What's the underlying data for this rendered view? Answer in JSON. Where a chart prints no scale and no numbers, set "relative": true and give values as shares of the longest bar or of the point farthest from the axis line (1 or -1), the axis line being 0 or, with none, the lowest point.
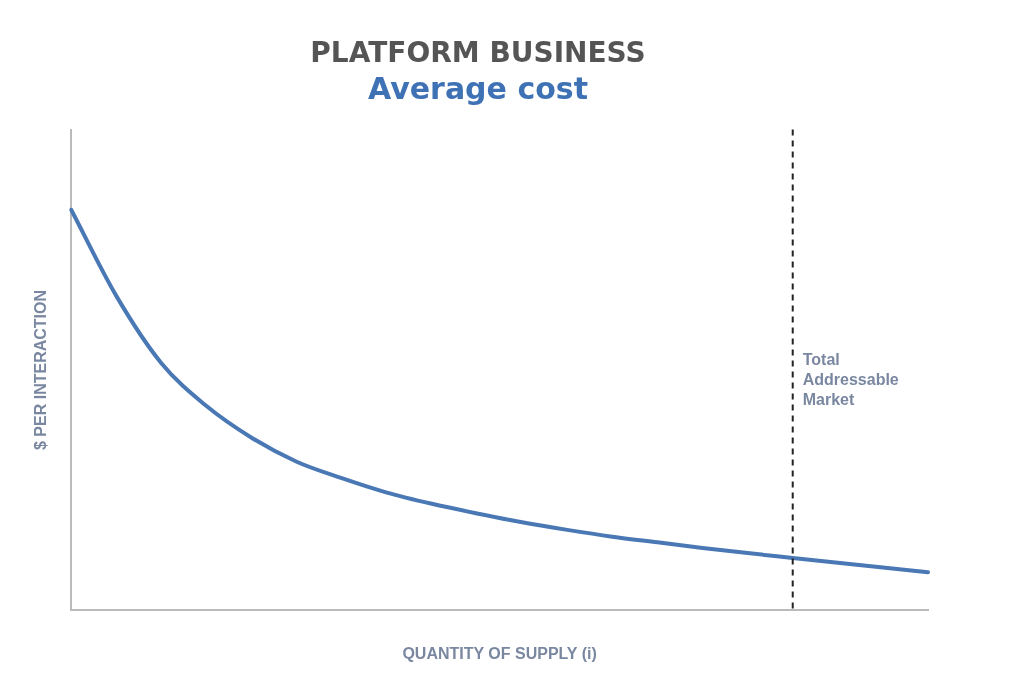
{
  "chart_data": {
    "type": "line",
    "title": "PLATFORM BUSINESS",
    "subtitle": "Average cost",
    "xlabel": "QUANTITY OF SUPPLY (i)",
    "ylabel": "$ PER INTERACTION",
    "relative": true,
    "legend": false,
    "grid": false,
    "marker": "none",
    "line_style": "solid",
    "categories": [
      null,
      null,
      null,
      null,
      null,
      null,
      null,
      null,
      null,
      null,
      null,
      null,
      null,
      null,
      null,
      null,
      null,
      null,
      null,
      null
    ],
    "series": [
      {
        "color": "#4a78b5",
        "values": [
          1,
          0.785,
          0.617,
          0.51,
          0.431,
          0.371,
          0.33,
          0.294,
          0.266,
          0.242,
          0.22,
          0.201,
          0.184,
          0.17,
          0.156,
          0.143,
          0.131,
          0.119,
          0.107,
          0.095
        ]
      }
    ],
    "annotations": [
      "Total Addressable Market"
    ]
  }
}
